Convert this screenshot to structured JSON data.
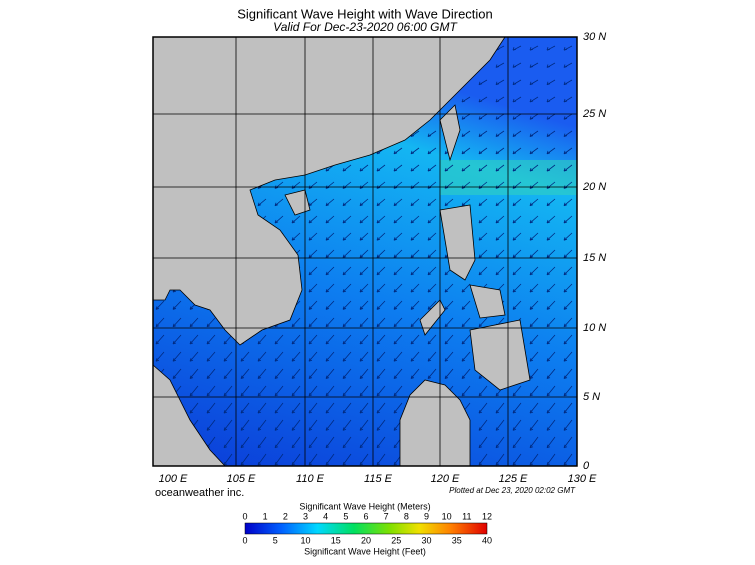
{
  "header": {
    "title": "Significant Wave Height with Wave Direction",
    "subtitle": "Valid For Dec-23-2020 06:00 GMT"
  },
  "map": {
    "lat_labels": [
      "30 N",
      "25 N",
      "20 N",
      "15 N",
      "10 N",
      "5 N",
      "0"
    ],
    "lon_labels": [
      "100 E",
      "105 E",
      "110 E",
      "115 E",
      "120 E",
      "125 E",
      "130 E"
    ]
  },
  "footer": {
    "credit": "oceanweather inc.",
    "plotted": "Plotted at Dec 23, 2020 02:02 GMT"
  },
  "colorbar": {
    "meters_title": "Significant Wave Height (Meters)",
    "meters_ticks": [
      "0",
      "1",
      "2",
      "3",
      "4",
      "5",
      "6",
      "7",
      "8",
      "9",
      "10",
      "11",
      "12"
    ],
    "feet_ticks": [
      "0",
      "5",
      "10",
      "15",
      "20",
      "25",
      "30",
      "35",
      "40"
    ],
    "feet_title": "Significant Wave Height (Feet)"
  }
}
